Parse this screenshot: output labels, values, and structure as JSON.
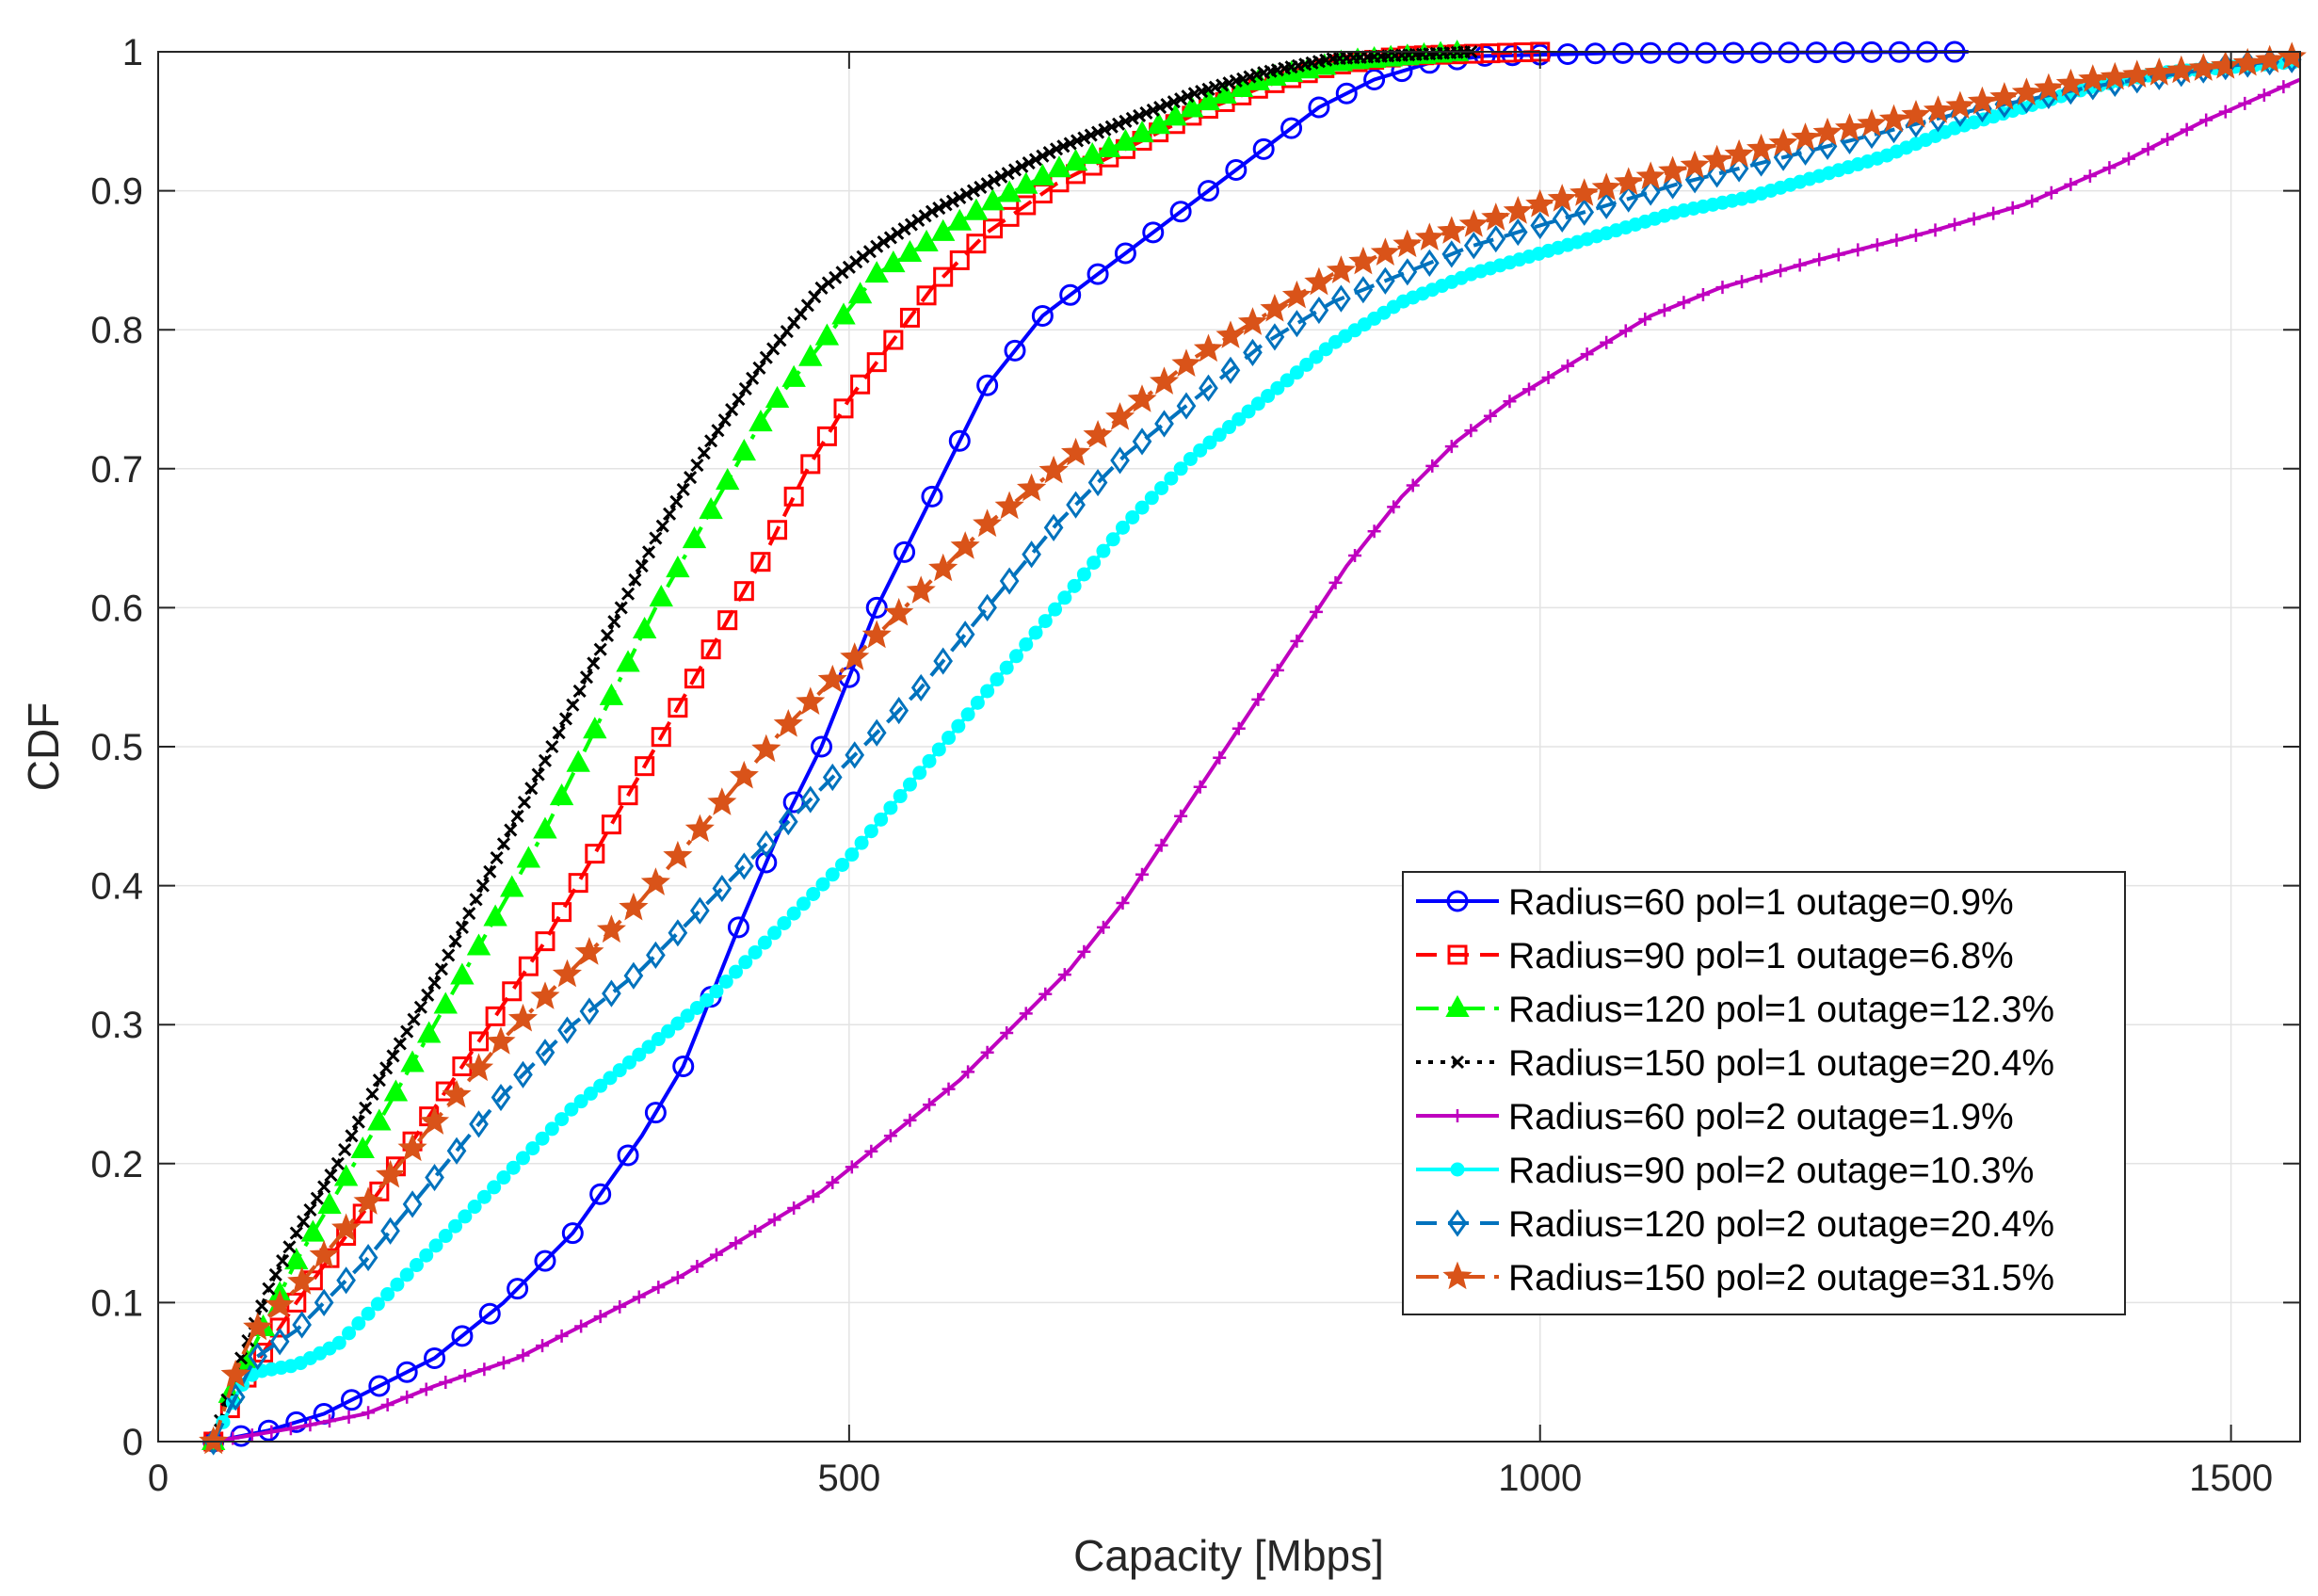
{
  "chart_data": {
    "type": "line",
    "title": "",
    "xlabel": "Capacity [Mbps]",
    "ylabel": "CDF",
    "xlim": [
      0,
      1550
    ],
    "ylim": [
      0,
      1
    ],
    "xticks": [
      0,
      500,
      1000,
      1500
    ],
    "xtick_labels": [
      "0",
      "500",
      "1000",
      "1500"
    ],
    "yticks": [
      0,
      0.1,
      0.2,
      0.3,
      0.4,
      0.5,
      0.6,
      0.7,
      0.8,
      0.9,
      1
    ],
    "ytick_labels": [
      "0",
      "0.1",
      "0.2",
      "0.3",
      "0.4",
      "0.5",
      "0.6",
      "0.7",
      "0.8",
      "0.9",
      "1"
    ],
    "grid": true,
    "legend_position": "bottom-right",
    "series": [
      {
        "name": "Radius=60 pol=1 outage=0.9%",
        "color": "#0000ff",
        "dash": "solid",
        "marker": "circle-open",
        "marker_every": 20,
        "points": [
          [
            40,
            0
          ],
          [
            80,
            0.008
          ],
          [
            120,
            0.02
          ],
          [
            160,
            0.04
          ],
          [
            200,
            0.06
          ],
          [
            250,
            0.1
          ],
          [
            300,
            0.15
          ],
          [
            350,
            0.22
          ],
          [
            380,
            0.27
          ],
          [
            400,
            0.32
          ],
          [
            420,
            0.37
          ],
          [
            450,
            0.44
          ],
          [
            480,
            0.5
          ],
          [
            500,
            0.55
          ],
          [
            520,
            0.6
          ],
          [
            550,
            0.66
          ],
          [
            580,
            0.72
          ],
          [
            600,
            0.76
          ],
          [
            640,
            0.81
          ],
          [
            700,
            0.855
          ],
          [
            760,
            0.9
          ],
          [
            800,
            0.93
          ],
          [
            840,
            0.96
          ],
          [
            880,
            0.98
          ],
          [
            920,
            0.992
          ],
          [
            960,
            0.997
          ],
          [
            1050,
            0.999
          ],
          [
            1310,
            1
          ]
        ]
      },
      {
        "name": "Radius=90 pol=1 outage=6.8%",
        "color": "#ff0000",
        "dash": "dash",
        "marker": "square-open",
        "marker_every": 12,
        "points": [
          [
            40,
            0
          ],
          [
            50,
            0.02
          ],
          [
            60,
            0.04
          ],
          [
            80,
            0.07
          ],
          [
            100,
            0.1
          ],
          [
            130,
            0.14
          ],
          [
            160,
            0.18
          ],
          [
            200,
            0.24
          ],
          [
            240,
            0.3
          ],
          [
            280,
            0.36
          ],
          [
            320,
            0.43
          ],
          [
            360,
            0.5
          ],
          [
            400,
            0.57
          ],
          [
            440,
            0.64
          ],
          [
            470,
            0.7
          ],
          [
            500,
            0.75
          ],
          [
            530,
            0.79
          ],
          [
            560,
            0.83
          ],
          [
            600,
            0.87
          ],
          [
            650,
            0.905
          ],
          [
            700,
            0.93
          ],
          [
            750,
            0.955
          ],
          [
            800,
            0.975
          ],
          [
            850,
            0.99
          ],
          [
            900,
            0.997
          ],
          [
            1000,
            1
          ]
        ]
      },
      {
        "name": "Radius=120 pol=1 outage=12.3%",
        "color": "#00ff00",
        "dash": "dashdot",
        "marker": "triangle-filled",
        "marker_every": 12,
        "points": [
          [
            40,
            0
          ],
          [
            50,
            0.03
          ],
          [
            60,
            0.05
          ],
          [
            80,
            0.09
          ],
          [
            100,
            0.13
          ],
          [
            130,
            0.18
          ],
          [
            160,
            0.23
          ],
          [
            200,
            0.3
          ],
          [
            240,
            0.37
          ],
          [
            280,
            0.44
          ],
          [
            320,
            0.52
          ],
          [
            360,
            0.6
          ],
          [
            400,
            0.67
          ],
          [
            440,
            0.74
          ],
          [
            480,
            0.79
          ],
          [
            520,
            0.84
          ],
          [
            560,
            0.865
          ],
          [
            600,
            0.89
          ],
          [
            650,
            0.915
          ],
          [
            700,
            0.935
          ],
          [
            750,
            0.96
          ],
          [
            800,
            0.98
          ],
          [
            860,
            0.993
          ],
          [
            950,
            1
          ]
        ]
      },
      {
        "name": "Radius=150 pol=1 outage=20.4%",
        "color": "#000000",
        "dash": "dot",
        "marker": "x",
        "marker_every": 5,
        "points": [
          [
            40,
            0
          ],
          [
            50,
            0.03
          ],
          [
            60,
            0.06
          ],
          [
            80,
            0.11
          ],
          [
            100,
            0.15
          ],
          [
            130,
            0.2
          ],
          [
            160,
            0.26
          ],
          [
            200,
            0.33
          ],
          [
            240,
            0.41
          ],
          [
            280,
            0.49
          ],
          [
            320,
            0.57
          ],
          [
            360,
            0.65
          ],
          [
            400,
            0.72
          ],
          [
            440,
            0.78
          ],
          [
            480,
            0.83
          ],
          [
            520,
            0.86
          ],
          [
            560,
            0.885
          ],
          [
            600,
            0.905
          ],
          [
            650,
            0.93
          ],
          [
            700,
            0.95
          ],
          [
            750,
            0.97
          ],
          [
            800,
            0.985
          ],
          [
            850,
            0.995
          ],
          [
            950,
            1
          ]
        ]
      },
      {
        "name": "Radius=60 pol=2 outage=1.9%",
        "color": "#bf00bf",
        "dash": "solid",
        "marker": "plus",
        "marker_every": 14,
        "points": [
          [
            40,
            0
          ],
          [
            100,
            0.01
          ],
          [
            150,
            0.02
          ],
          [
            200,
            0.04
          ],
          [
            260,
            0.06
          ],
          [
            320,
            0.09
          ],
          [
            380,
            0.12
          ],
          [
            430,
            0.15
          ],
          [
            480,
            0.18
          ],
          [
            530,
            0.22
          ],
          [
            580,
            0.26
          ],
          [
            620,
            0.3
          ],
          [
            660,
            0.34
          ],
          [
            700,
            0.39
          ],
          [
            740,
            0.45
          ],
          [
            780,
            0.51
          ],
          [
            820,
            0.57
          ],
          [
            860,
            0.63
          ],
          [
            900,
            0.68
          ],
          [
            940,
            0.72
          ],
          [
            980,
            0.75
          ],
          [
            1030,
            0.78
          ],
          [
            1080,
            0.81
          ],
          [
            1130,
            0.83
          ],
          [
            1200,
            0.85
          ],
          [
            1280,
            0.87
          ],
          [
            1350,
            0.89
          ],
          [
            1420,
            0.92
          ],
          [
            1480,
            0.95
          ],
          [
            1550,
            0.98
          ]
        ]
      },
      {
        "name": "Radius=90 pol=2 outage=10.3%",
        "color": "#00ffff",
        "dash": "solid",
        "marker": "dot",
        "marker_every": 7,
        "points": [
          [
            40,
            0
          ],
          [
            50,
            0.02
          ],
          [
            60,
            0.04
          ],
          [
            70,
            0.05
          ],
          [
            100,
            0.055
          ],
          [
            130,
            0.07
          ],
          [
            160,
            0.1
          ],
          [
            200,
            0.14
          ],
          [
            250,
            0.19
          ],
          [
            300,
            0.24
          ],
          [
            350,
            0.28
          ],
          [
            400,
            0.32
          ],
          [
            450,
            0.37
          ],
          [
            500,
            0.42
          ],
          [
            550,
            0.48
          ],
          [
            600,
            0.54
          ],
          [
            650,
            0.6
          ],
          [
            700,
            0.66
          ],
          [
            750,
            0.71
          ],
          [
            800,
            0.75
          ],
          [
            850,
            0.79
          ],
          [
            900,
            0.82
          ],
          [
            950,
            0.84
          ],
          [
            1000,
            0.855
          ],
          [
            1050,
            0.87
          ],
          [
            1100,
            0.885
          ],
          [
            1150,
            0.895
          ],
          [
            1200,
            0.91
          ],
          [
            1250,
            0.925
          ],
          [
            1300,
            0.945
          ],
          [
            1350,
            0.96
          ],
          [
            1400,
            0.975
          ],
          [
            1450,
            0.985
          ],
          [
            1550,
            0.993
          ]
        ]
      },
      {
        "name": "Radius=120 pol=2 outage=20.4%",
        "color": "#0072bd",
        "dash": "dash",
        "marker": "diamond-open",
        "marker_every": 16,
        "points": [
          [
            40,
            0
          ],
          [
            50,
            0.02
          ],
          [
            60,
            0.04
          ],
          [
            70,
            0.06
          ],
          [
            100,
            0.08
          ],
          [
            150,
            0.13
          ],
          [
            200,
            0.19
          ],
          [
            250,
            0.25
          ],
          [
            300,
            0.3
          ],
          [
            350,
            0.34
          ],
          [
            400,
            0.39
          ],
          [
            450,
            0.44
          ],
          [
            500,
            0.49
          ],
          [
            550,
            0.54
          ],
          [
            600,
            0.6
          ],
          [
            650,
            0.66
          ],
          [
            700,
            0.71
          ],
          [
            750,
            0.75
          ],
          [
            800,
            0.79
          ],
          [
            850,
            0.82
          ],
          [
            900,
            0.84
          ],
          [
            950,
            0.86
          ],
          [
            1000,
            0.875
          ],
          [
            1100,
            0.905
          ],
          [
            1200,
            0.93
          ],
          [
            1300,
            0.955
          ],
          [
            1400,
            0.975
          ],
          [
            1500,
            0.99
          ],
          [
            1550,
            0.995
          ]
        ]
      },
      {
        "name": "Radius=150 pol=2 outage=31.5%",
        "color": "#d95319",
        "dash": "dashdot",
        "marker": "star-filled",
        "marker_every": 16,
        "points": [
          [
            40,
            0
          ],
          [
            50,
            0.03
          ],
          [
            60,
            0.06
          ],
          [
            70,
            0.08
          ],
          [
            100,
            0.11
          ],
          [
            150,
            0.17
          ],
          [
            200,
            0.23
          ],
          [
            250,
            0.29
          ],
          [
            300,
            0.34
          ],
          [
            350,
            0.39
          ],
          [
            400,
            0.45
          ],
          [
            450,
            0.51
          ],
          [
            500,
            0.56
          ],
          [
            550,
            0.61
          ],
          [
            600,
            0.66
          ],
          [
            650,
            0.7
          ],
          [
            700,
            0.74
          ],
          [
            750,
            0.78
          ],
          [
            800,
            0.81
          ],
          [
            850,
            0.84
          ],
          [
            900,
            0.86
          ],
          [
            950,
            0.875
          ],
          [
            1000,
            0.89
          ],
          [
            1100,
            0.915
          ],
          [
            1200,
            0.94
          ],
          [
            1300,
            0.96
          ],
          [
            1400,
            0.98
          ],
          [
            1500,
            0.99
          ],
          [
            1550,
            0.997
          ]
        ]
      }
    ]
  }
}
